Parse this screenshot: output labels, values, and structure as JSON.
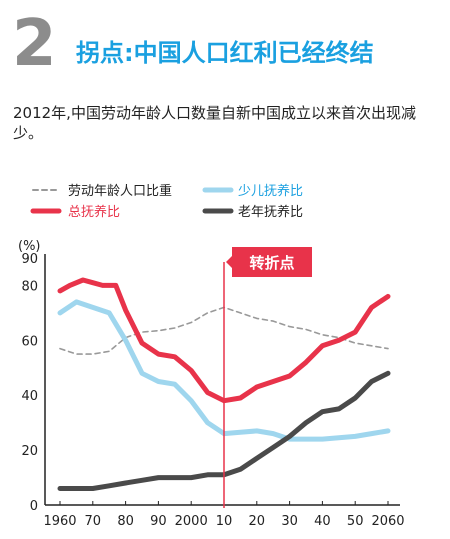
{
  "header": {
    "number": "2",
    "title": "拐点:中国人口红利已经终结",
    "subtitle": "2012年,中国劳动年龄人口数量自新中国成立以来首次出现减少。"
  },
  "colors": {
    "working_age": "#999999",
    "total_dependency": "#e8334a",
    "child_dependency": "#9fd6ee",
    "elderly_dependency": "#4a4a4a",
    "title": "#1aa0e0",
    "turning_point": "#e8334a"
  },
  "chart_data": {
    "type": "line",
    "unit_label": "(%)",
    "ylim": [
      0,
      90
    ],
    "yticks": [
      0,
      20,
      40,
      60,
      80,
      90
    ],
    "xlim": [
      1960,
      2060
    ],
    "xticks": [
      1960,
      1970,
      1980,
      1990,
      2000,
      2010,
      2020,
      2030,
      2040,
      2050,
      2060
    ],
    "xtick_labels": [
      "1960",
      "70",
      "80",
      "90",
      "2000",
      "10",
      "20",
      "30",
      "40",
      "50",
      "2060"
    ],
    "turning_point": {
      "x": 2010,
      "label": "转折点"
    },
    "legend": [
      {
        "key": "working_age",
        "label": "劳动年龄人口比重",
        "style": "dashed"
      },
      {
        "key": "child_dependency",
        "label": "少儿抚养比",
        "style": "solid"
      },
      {
        "key": "total_dependency",
        "label": "总抚养比",
        "style": "solid"
      },
      {
        "key": "elderly_dependency",
        "label": "老年抚养比",
        "style": "solid"
      }
    ],
    "series": [
      {
        "key": "working_age",
        "name": "劳动年龄人口比重",
        "x": [
          1960,
          1965,
          1970,
          1975,
          1980,
          1985,
          1990,
          1995,
          2000,
          2005,
          2010,
          2015,
          2020,
          2025,
          2030,
          2035,
          2040,
          2045,
          2050,
          2055,
          2060
        ],
        "values": [
          57,
          55,
          55,
          56,
          61,
          63,
          63.5,
          64.5,
          66.5,
          70,
          72,
          70,
          68,
          67,
          65,
          64,
          62,
          61,
          59,
          58,
          57
        ]
      },
      {
        "key": "total_dependency",
        "name": "总抚养比",
        "x": [
          1960,
          1963,
          1967,
          1970,
          1973,
          1977,
          1980,
          1985,
          1990,
          1995,
          2000,
          2005,
          2010,
          2015,
          2020,
          2025,
          2030,
          2035,
          2040,
          2045,
          2050,
          2055,
          2060
        ],
        "values": [
          78,
          80,
          82,
          81,
          80,
          80,
          71,
          59,
          55,
          54,
          49,
          41,
          38,
          39,
          43,
          45,
          47,
          52,
          58,
          60,
          63,
          72,
          76
        ]
      },
      {
        "key": "child_dependency",
        "name": "少儿抚养比",
        "x": [
          1960,
          1965,
          1970,
          1975,
          1980,
          1985,
          1990,
          1995,
          2000,
          2005,
          2010,
          2015,
          2020,
          2025,
          2030,
          2035,
          2040,
          2045,
          2050,
          2055,
          2060
        ],
        "values": [
          70,
          74,
          72,
          70,
          60,
          48,
          45,
          44,
          38,
          30,
          26,
          26.5,
          27,
          26,
          24,
          24,
          24,
          24.5,
          25,
          26,
          27
        ]
      },
      {
        "key": "elderly_dependency",
        "name": "老年抚养比",
        "x": [
          1960,
          1965,
          1970,
          1975,
          1980,
          1985,
          1990,
          1995,
          2000,
          2005,
          2010,
          2015,
          2020,
          2025,
          2030,
          2035,
          2040,
          2045,
          2050,
          2055,
          2060
        ],
        "values": [
          6,
          6,
          6,
          7,
          8,
          9,
          10,
          10,
          10,
          11,
          11,
          13,
          17,
          21,
          25,
          30,
          34,
          35,
          39,
          45,
          48
        ]
      }
    ]
  }
}
